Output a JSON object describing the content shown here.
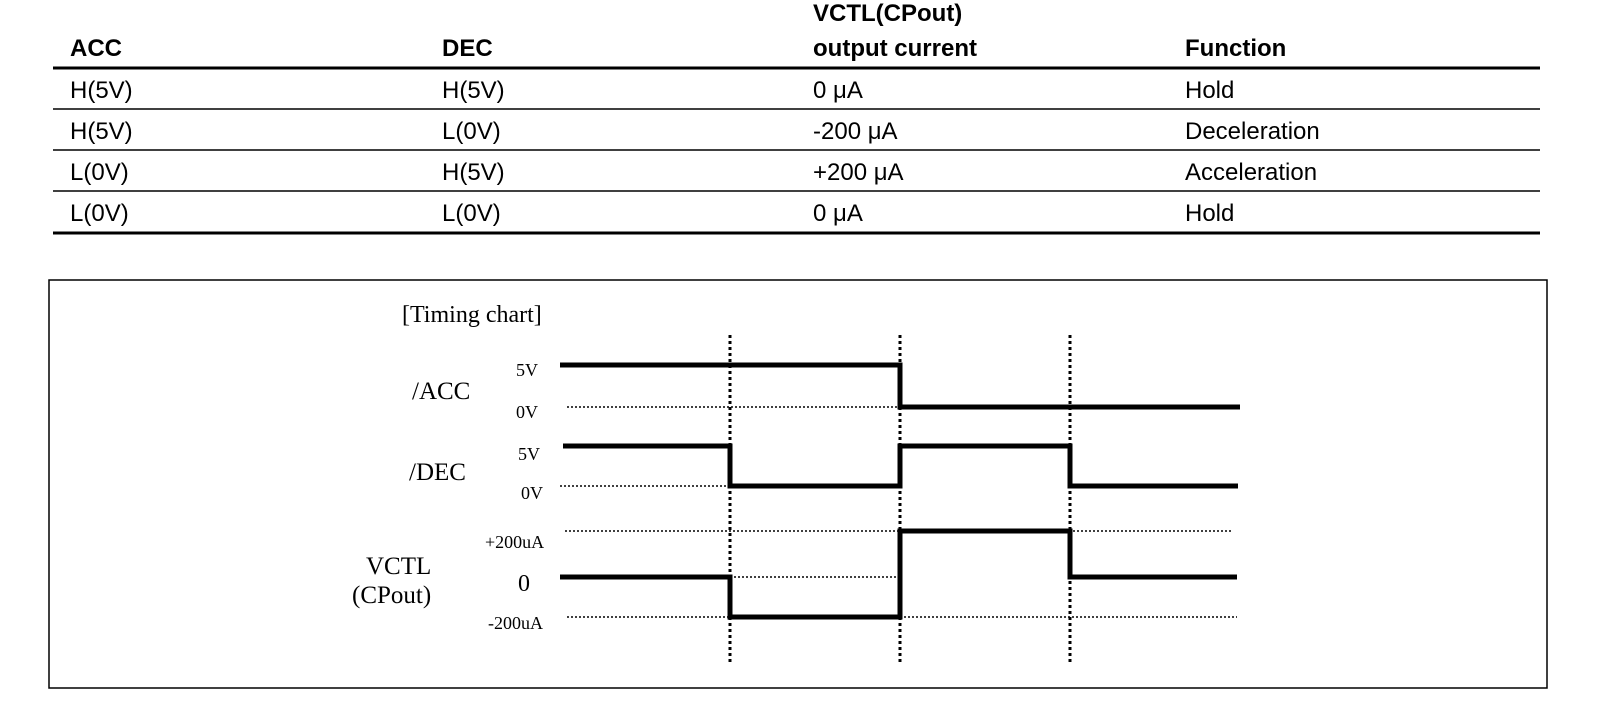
{
  "table": {
    "header": [
      [
        "ACC"
      ],
      [
        "DEC"
      ],
      [
        "VCTL(CPout)",
        "output current"
      ],
      [
        "Function"
      ]
    ],
    "rows": [
      [
        "H(5V)",
        "H(5V)",
        "0 μA",
        "Hold"
      ],
      [
        "H(5V)",
        "L(0V)",
        "-200 μA",
        "Deceleration"
      ],
      [
        "L(0V)",
        "H(5V)",
        "+200 μA",
        "Acceleration"
      ],
      [
        "L(0V)",
        "L(0V)",
        "0 μA",
        "Hold"
      ]
    ]
  },
  "timing_chart": {
    "title": "[Timing chart]",
    "signals": [
      {
        "name": [
          "/ACC"
        ],
        "levels": [
          "5V",
          "0V"
        ]
      },
      {
        "name": [
          "/DEC"
        ],
        "levels": [
          "5V",
          "0V"
        ]
      },
      {
        "name": [
          "VCTL",
          "(CPout)"
        ],
        "levels": [
          "+200uA",
          "0",
          "-200uA"
        ]
      }
    ]
  }
}
